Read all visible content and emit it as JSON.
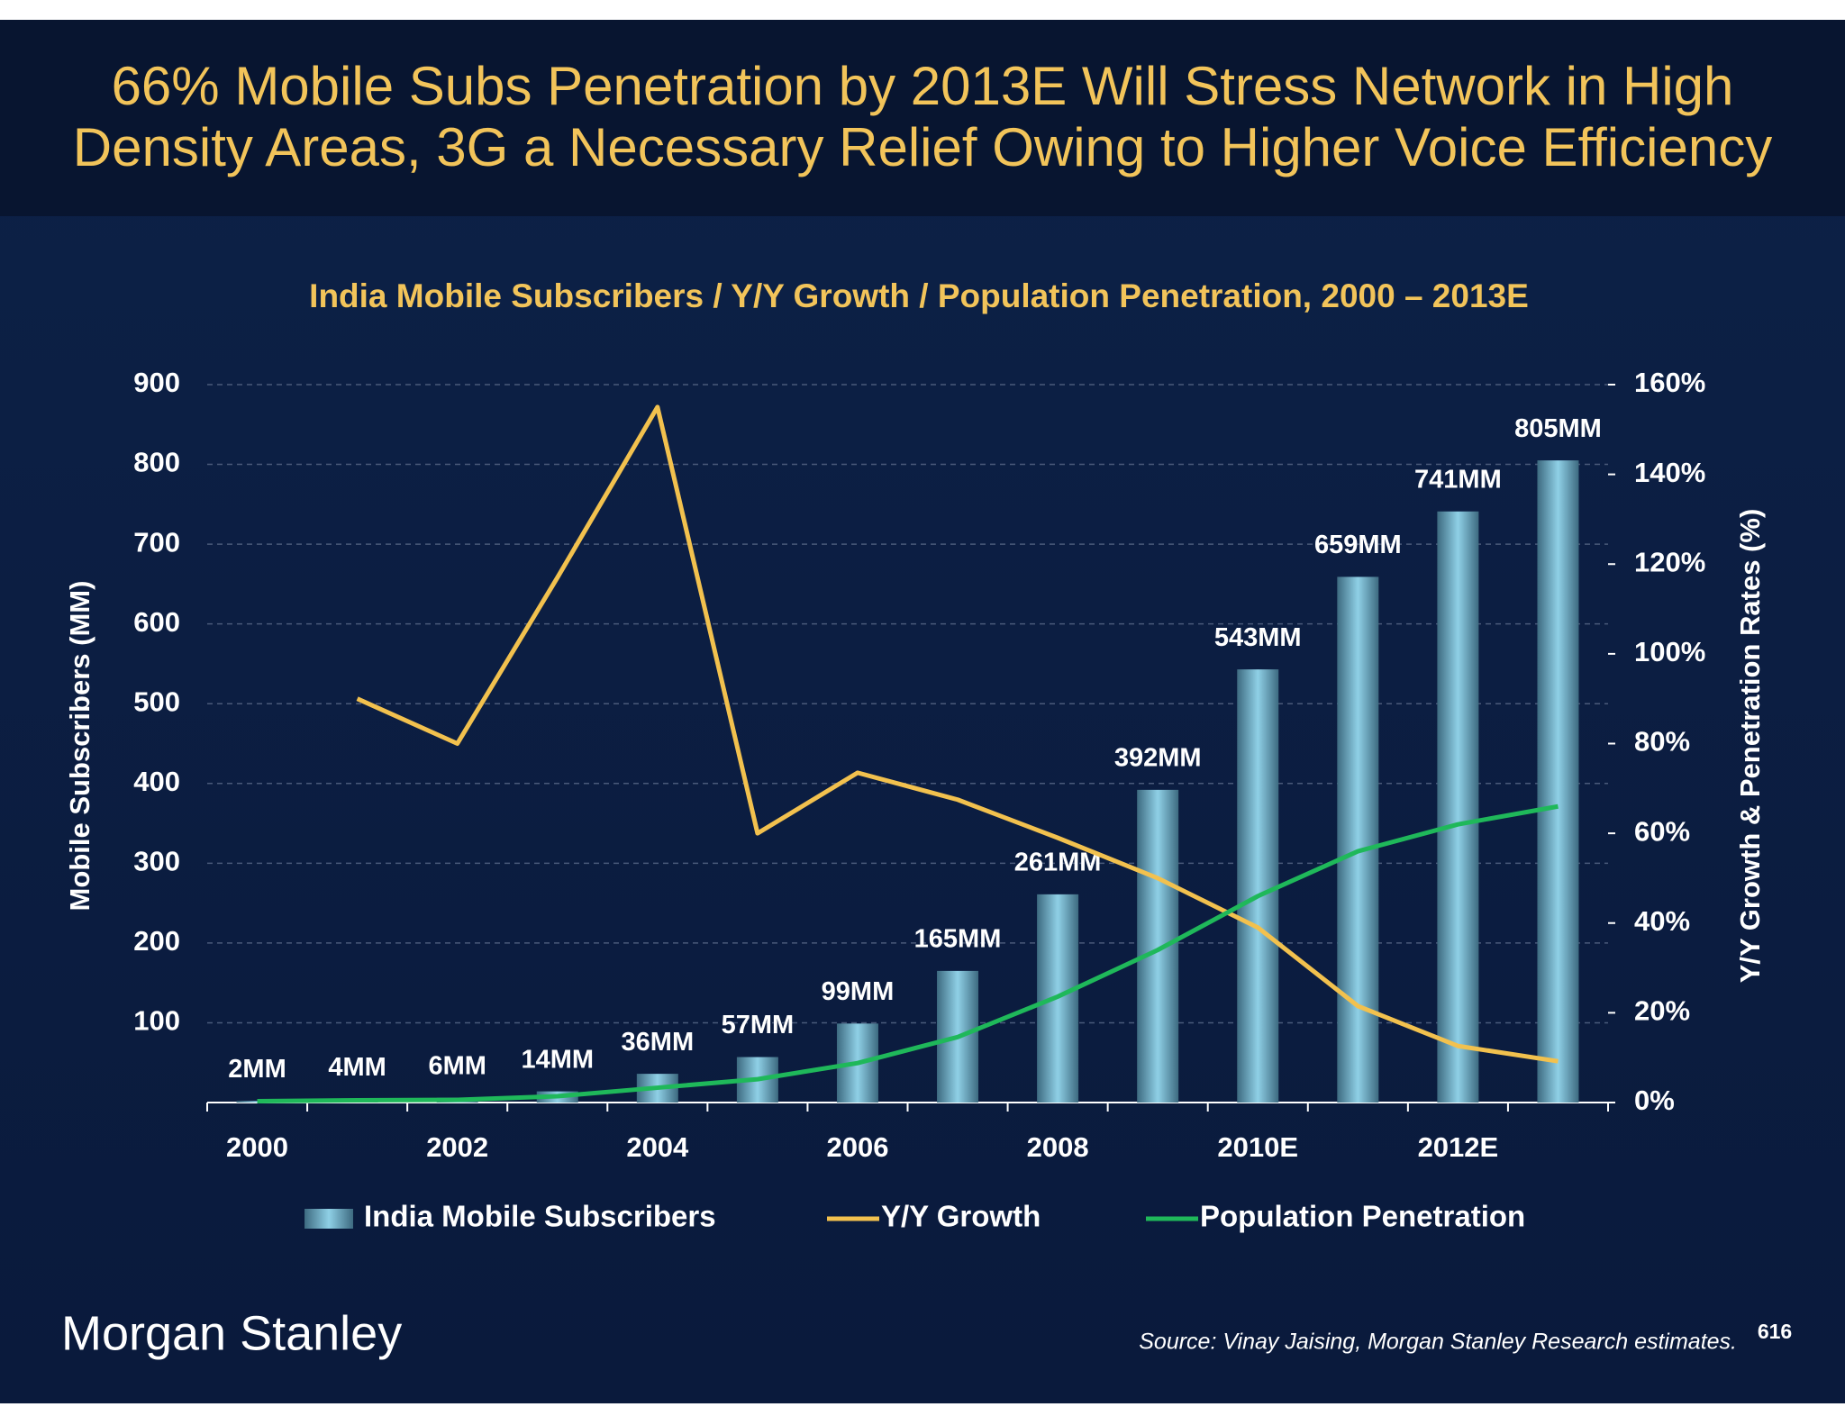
{
  "title": [
    "66% Mobile Subs Penetration by 2013E Will Stress Network in High",
    "Density Areas, 3G a Necessary Relief Owing to Higher Voice Efficiency"
  ],
  "chart_data": {
    "type": "bar-line",
    "title": "India Mobile Subscribers / Y/Y Growth / Population Penetration, 2000 – 2013E",
    "y_label": "Mobile Subscribers (MM)",
    "y2_label": "Y/Y Growth & Penetration Rates (%)",
    "categories": [
      "2000",
      null,
      "2002",
      null,
      "2004",
      null,
      "2006",
      null,
      "2008",
      null,
      "2010E",
      null,
      "2012E",
      null
    ],
    "series": [
      {
        "name": "India Mobile Subscribers",
        "type": "bar",
        "color": "#8fd0e6",
        "values": [
          2,
          4,
          6,
          14,
          36,
          57,
          99,
          165,
          261,
          392,
          543,
          659,
          741,
          805
        ],
        "value_labels": [
          "2MM",
          "4MM",
          "6MM",
          "14MM",
          "36MM",
          "57MM",
          "99MM",
          "165MM",
          "261MM",
          "392MM",
          "543MM",
          "659MM",
          "741MM",
          "805MM"
        ]
      },
      {
        "name": "Y/Y Growth",
        "type": "line",
        "axis": "y2",
        "color": "#f2c14e",
        "values": [
          null,
          90,
          80,
          117,
          155,
          60,
          73.5,
          67.5,
          59,
          50,
          39,
          21.5,
          12.6,
          9.2
        ]
      },
      {
        "name": "Population Penetration",
        "type": "line",
        "axis": "y2",
        "color": "#1fb85a",
        "values": [
          0.3,
          0.5,
          0.6,
          1.4,
          3.3,
          5.2,
          8.8,
          14.6,
          23.6,
          34,
          46,
          56,
          62,
          66
        ]
      }
    ],
    "ylim": [
      0,
      900
    ],
    "yticks": [
      100,
      200,
      300,
      400,
      500,
      600,
      700,
      800,
      900
    ],
    "y2lim": [
      0,
      160
    ],
    "y2ticks": [
      {
        "value": 0,
        "label": "0%"
      },
      {
        "value": 20,
        "label": "20%"
      },
      {
        "value": 40,
        "label": "40%"
      },
      {
        "value": 60,
        "label": "60%"
      },
      {
        "value": 80,
        "label": "80%"
      },
      {
        "value": 100,
        "label": "100%"
      },
      {
        "value": 120,
        "label": "120%"
      },
      {
        "value": 140,
        "label": "140%"
      },
      {
        "value": 160,
        "label": "160%"
      }
    ],
    "grid": true,
    "legend": "bottom"
  },
  "footer": {
    "logo": "Morgan Stanley",
    "source": "Source: Vinay Jaising, Morgan Stanley Research estimates.",
    "page": "616"
  }
}
